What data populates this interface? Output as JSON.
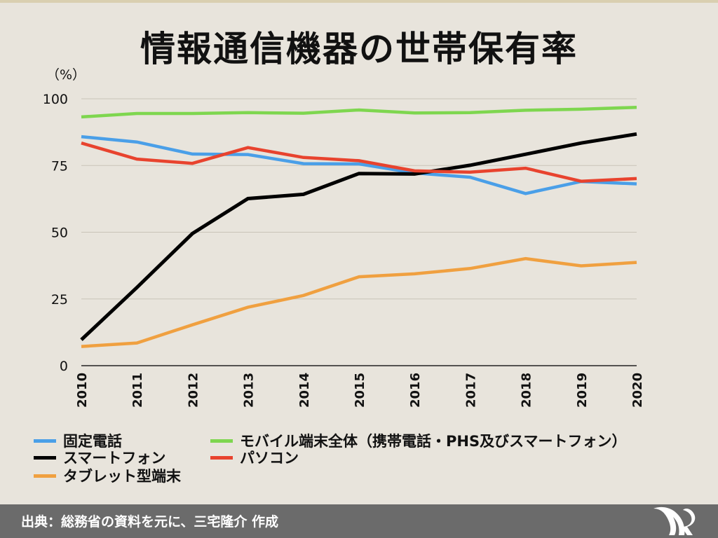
{
  "title": "情報通信機器の世帯保有率",
  "footer": {
    "source": "出典：総務省の資料を元に、三宅隆介 作成",
    "logo_icon": "mr-monogram-logo"
  },
  "chart_data": {
    "type": "line",
    "title": "情報通信機器の世帯保有率",
    "ylabel": "（%）",
    "xlabel": "",
    "x": [
      "2010",
      "2011",
      "2012",
      "2013",
      "2014",
      "2015",
      "2016",
      "2017",
      "2018",
      "2019",
      "2020"
    ],
    "ylim": [
      0,
      100
    ],
    "yticks": [
      0,
      25,
      50,
      75,
      100
    ],
    "grid": true,
    "legend_position": "bottom",
    "series": [
      {
        "name": "固定電話",
        "color": "#4a9fe8",
        "values": [
          85.8,
          83.8,
          79.3,
          79.1,
          75.7,
          75.6,
          72.2,
          70.6,
          64.5,
          69.0,
          68.1
        ]
      },
      {
        "name": "モバイル端末全体（携帯電話・PHS及びスマートフォン）",
        "color": "#7ed64f",
        "values": [
          93.2,
          94.5,
          94.5,
          94.8,
          94.6,
          95.8,
          94.7,
          94.8,
          95.7,
          96.1,
          96.8
        ]
      },
      {
        "name": "スマートフォン",
        "color": "#000000",
        "values": [
          9.7,
          29.3,
          49.5,
          62.6,
          64.2,
          72.0,
          71.8,
          75.1,
          79.2,
          83.4,
          86.8
        ]
      },
      {
        "name": "パソコン",
        "color": "#e8432e",
        "values": [
          83.4,
          77.4,
          75.8,
          81.7,
          78.0,
          76.8,
          73.0,
          72.5,
          74.0,
          69.1,
          70.1
        ]
      },
      {
        "name": "タブレット型端末",
        "color": "#f0a040",
        "values": [
          7.2,
          8.5,
          15.3,
          21.9,
          26.3,
          33.3,
          34.4,
          36.4,
          40.1,
          37.4,
          38.7
        ]
      }
    ]
  }
}
